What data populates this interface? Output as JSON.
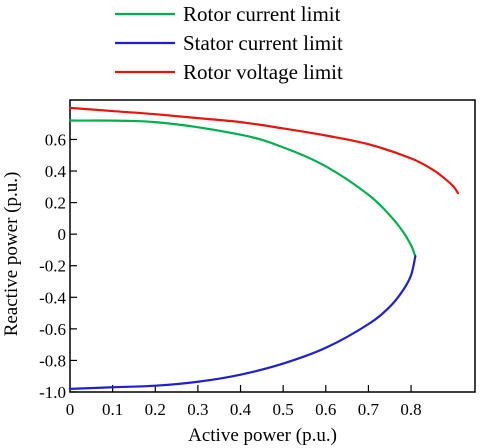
{
  "chart_data": {
    "type": "line",
    "title": "",
    "xlabel": "Active power  (p.u.)",
    "ylabel": "Reactive power  (p.u.)",
    "xlim": [
      0,
      0.95
    ],
    "ylim": [
      -1.0,
      0.85
    ],
    "xticks": [
      0,
      0.1,
      0.2,
      0.3,
      0.4,
      0.5,
      0.6,
      0.7,
      0.8
    ],
    "xtick_labels": [
      "0",
      "0.1",
      "0.2",
      "0.3",
      "0.4",
      "0.5",
      "0.6",
      "0.7",
      "0.8"
    ],
    "yticks": [
      -1.0,
      -0.8,
      -0.6,
      -0.4,
      -0.2,
      0,
      0.2,
      0.4,
      0.6
    ],
    "ytick_labels": [
      "-1.0",
      "-0.8",
      "-0.6",
      "-0.4",
      "-0.2",
      "0",
      "0.2",
      "0.4",
      "0.6"
    ],
    "grid": false,
    "legend_position": "top",
    "series": [
      {
        "name": "Rotor current limit",
        "color": "#00b050",
        "x": [
          0.0,
          0.2,
          0.4,
          0.5,
          0.6,
          0.7,
          0.75,
          0.78,
          0.8,
          0.81
        ],
        "y": [
          0.72,
          0.71,
          0.63,
          0.55,
          0.43,
          0.25,
          0.12,
          0.02,
          -0.07,
          -0.14
        ]
      },
      {
        "name": "Stator current limit",
        "color": "#1f1fcf",
        "x": [
          0.81,
          0.8,
          0.78,
          0.75,
          0.7,
          0.6,
          0.5,
          0.4,
          0.3,
          0.2,
          0.1,
          0.0
        ],
        "y": [
          -0.14,
          -0.26,
          -0.36,
          -0.46,
          -0.57,
          -0.72,
          -0.82,
          -0.89,
          -0.935,
          -0.96,
          -0.97,
          -0.98
        ]
      },
      {
        "name": "Rotor voltage limit",
        "color": "#e8150d",
        "x": [
          0.0,
          0.1,
          0.2,
          0.3,
          0.4,
          0.5,
          0.6,
          0.7,
          0.8,
          0.85,
          0.88,
          0.9,
          0.91
        ],
        "y": [
          0.8,
          0.78,
          0.76,
          0.735,
          0.71,
          0.67,
          0.625,
          0.57,
          0.48,
          0.41,
          0.35,
          0.3,
          0.26
        ]
      }
    ]
  }
}
